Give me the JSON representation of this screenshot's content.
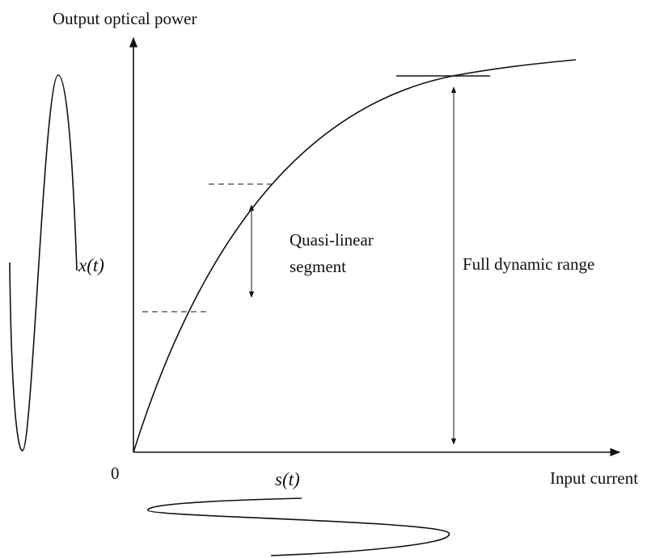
{
  "labels": {
    "y_axis": "Output optical power",
    "x_axis": "Input current",
    "origin": "0",
    "input_signal": "s(t)",
    "output_signal": "x(t)",
    "quasi_linear": [
      "Quasi-linear",
      "segment"
    ],
    "full_range": "Full dynamic range"
  }
}
